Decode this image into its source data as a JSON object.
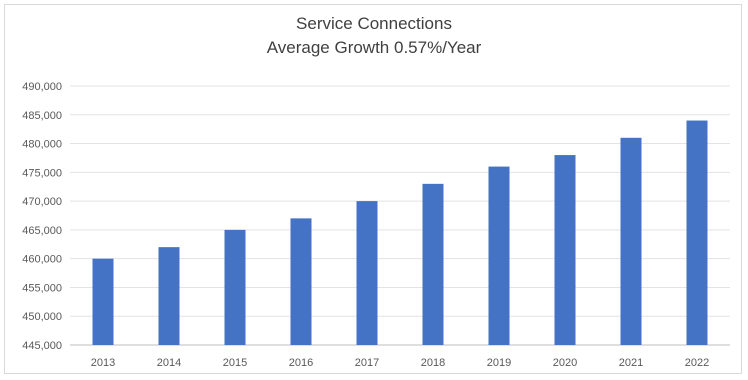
{
  "chart_data": {
    "type": "bar",
    "title": "Service Connections",
    "subtitle": "Average Growth 0.57%/Year",
    "categories": [
      "2013",
      "2014",
      "2015",
      "2016",
      "2017",
      "2018",
      "2019",
      "2020",
      "2021",
      "2022"
    ],
    "values": [
      460000,
      462000,
      465000,
      467000,
      470000,
      473000,
      476000,
      478000,
      481000,
      484000
    ],
    "ylim": [
      445000,
      490000
    ],
    "yticks": [
      "445,000",
      "450,000",
      "455,000",
      "460,000",
      "465,000",
      "470,000",
      "475,000",
      "480,000",
      "485,000",
      "490,000"
    ],
    "grid": true,
    "bar_color": "#4472c4"
  }
}
